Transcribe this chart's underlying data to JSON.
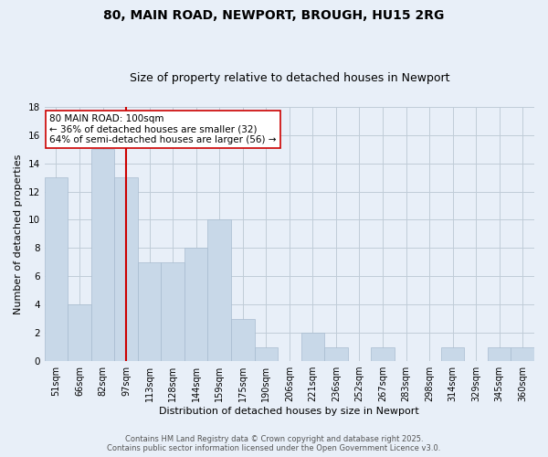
{
  "title1": "80, MAIN ROAD, NEWPORT, BROUGH, HU15 2RG",
  "title2": "Size of property relative to detached houses in Newport",
  "xlabel": "Distribution of detached houses by size in Newport",
  "ylabel": "Number of detached properties",
  "bar_color": "#c8d8e8",
  "bar_edge_color": "#a8bcd0",
  "bins": [
    "51sqm",
    "66sqm",
    "82sqm",
    "97sqm",
    "113sqm",
    "128sqm",
    "144sqm",
    "159sqm",
    "175sqm",
    "190sqm",
    "206sqm",
    "221sqm",
    "236sqm",
    "252sqm",
    "267sqm",
    "283sqm",
    "298sqm",
    "314sqm",
    "329sqm",
    "345sqm",
    "360sqm"
  ],
  "counts": [
    13,
    4,
    15,
    13,
    7,
    7,
    8,
    10,
    3,
    1,
    0,
    2,
    1,
    0,
    1,
    0,
    0,
    1,
    0,
    1,
    1
  ],
  "red_line_x": 3,
  "annotation_text": "80 MAIN ROAD: 100sqm\n← 36% of detached houses are smaller (32)\n64% of semi-detached houses are larger (56) →",
  "annotation_box_color": "#ffffff",
  "annotation_box_edge": "#cc0000",
  "red_line_color": "#cc0000",
  "grid_color": "#c0ccd8",
  "background_color": "#e8eff8",
  "footer_text": "Contains HM Land Registry data © Crown copyright and database right 2025.\nContains public sector information licensed under the Open Government Licence v3.0.",
  "ylim": [
    0,
    18
  ],
  "yticks": [
    0,
    2,
    4,
    6,
    8,
    10,
    12,
    14,
    16,
    18
  ],
  "title1_fontsize": 10,
  "title2_fontsize": 9,
  "ylabel_fontsize": 8,
  "xlabel_fontsize": 8,
  "tick_fontsize": 7,
  "footer_fontsize": 6,
  "ann_fontsize": 7.5
}
